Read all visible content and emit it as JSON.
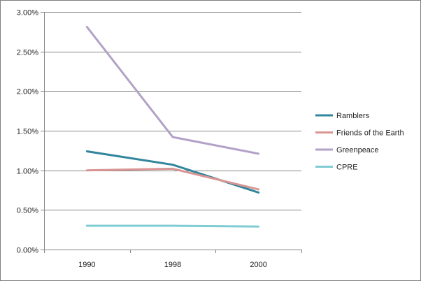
{
  "chart_data": {
    "type": "line",
    "title": "",
    "xlabel": "",
    "ylabel": "",
    "categories": [
      "1990",
      "1998",
      "2000"
    ],
    "ylim": [
      0,
      0.03
    ],
    "yticks": [
      "0.00%",
      "0.50%",
      "1.00%",
      "1.50%",
      "2.00%",
      "2.50%",
      "3.00%"
    ],
    "ytick_values": [
      0,
      0.005,
      0.01,
      0.015,
      0.02,
      0.025,
      0.03
    ],
    "grid": "horizontal major gridlines",
    "legend_position": "right",
    "series": [
      {
        "name": "Ramblers",
        "color": "#31859c",
        "values": [
          0.0124,
          0.0107,
          0.0072
        ]
      },
      {
        "name": "Friends of the Earth",
        "color": "#d99694",
        "values": [
          0.01,
          0.0102,
          0.0076
        ]
      },
      {
        "name": "Greenpeace",
        "color": "#b3a2c7",
        "values": [
          0.0281,
          0.0142,
          0.0121
        ]
      },
      {
        "name": "CPRE",
        "color": "#7fcdd3",
        "values": [
          0.003,
          0.003,
          0.0029
        ]
      }
    ]
  }
}
